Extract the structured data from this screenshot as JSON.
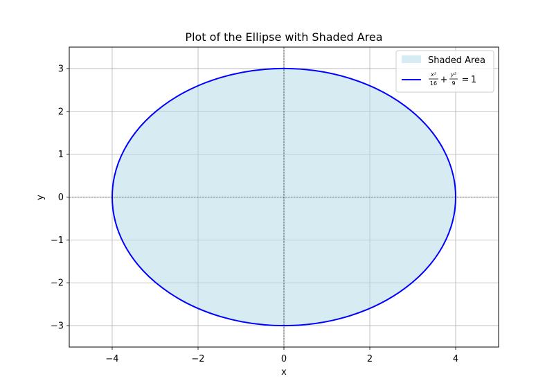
{
  "chart_data": {
    "type": "area",
    "title": "Plot of the Ellipse with Shaded Area",
    "xlabel": "x",
    "ylabel": "y",
    "xlim": [
      -5,
      5
    ],
    "ylim": [
      -3.5,
      3.5
    ],
    "x_ticks": [
      -4,
      -2,
      0,
      2,
      4
    ],
    "y_ticks": [
      -3,
      -2,
      -1,
      0,
      1,
      2,
      3
    ],
    "x_tick_labels": [
      "−4",
      "−2",
      "0",
      "2",
      "4"
    ],
    "y_tick_labels": [
      "−3",
      "−2",
      "−1",
      "0",
      "1",
      "2",
      "3"
    ],
    "grid": true,
    "legend_position": "top-right",
    "series": [
      {
        "name": "Shaded Area",
        "kind": "fill",
        "color": "#add8e6",
        "shape": "ellipse",
        "center": [
          0,
          0
        ],
        "semi_axis_x": 4,
        "semi_axis_y": 3
      },
      {
        "name": "x²/16 + y²/9 = 1",
        "kind": "line",
        "color": "#0000ff",
        "shape": "ellipse",
        "center": [
          0,
          0
        ],
        "semi_axis_x": 4,
        "semi_axis_y": 3
      }
    ],
    "reference_lines": [
      {
        "axis": "y",
        "value": 0,
        "style": "dashed",
        "color": "#000000"
      },
      {
        "axis": "x",
        "value": 0,
        "style": "dashed",
        "color": "#000000"
      }
    ]
  },
  "legend": {
    "shaded_label": "Shaded Area",
    "eq_x2": "x²",
    "eq_16": "16",
    "eq_plus": "+",
    "eq_y2": "y²",
    "eq_9": "9",
    "eq_equals": "=",
    "eq_1": "1"
  }
}
